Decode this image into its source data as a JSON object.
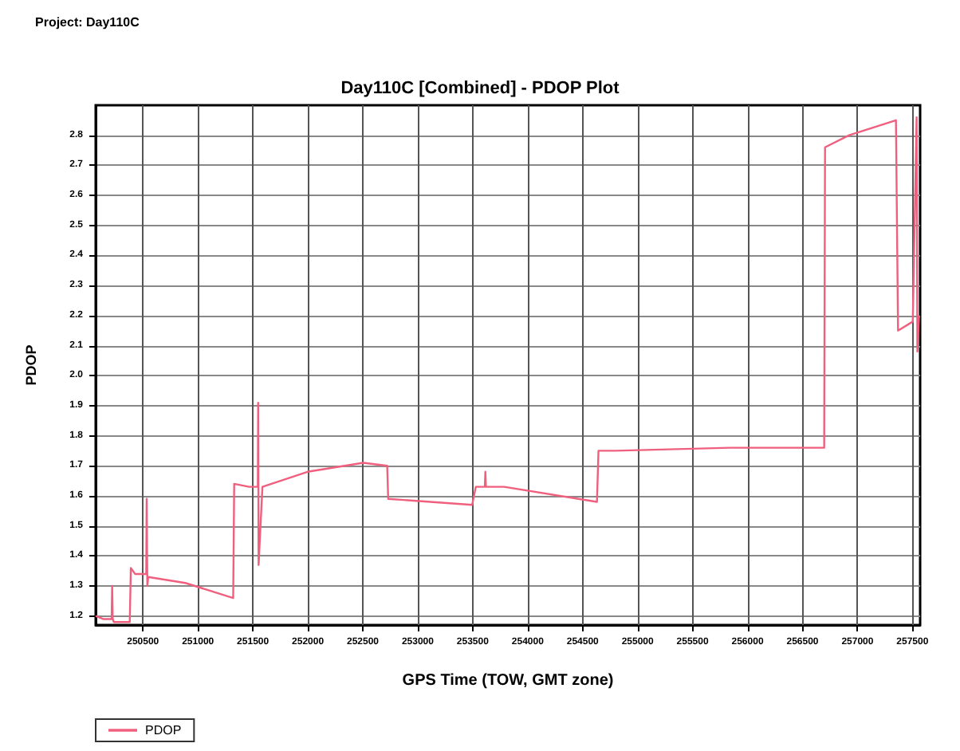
{
  "chart_data": {
    "type": "line",
    "title": "Day110C [Combined] - PDOP Plot",
    "xlabel": "GPS Time (TOW, GMT zone)",
    "ylabel": "PDOP",
    "annotations": [
      "Project: Day110C"
    ],
    "series": [
      {
        "name": "PDOP",
        "color": "#f0607e",
        "x": [
          250070,
          250138,
          250215,
          250220,
          250225,
          250235,
          250380,
          250390,
          250394,
          250428,
          250530,
          250534,
          250540,
          250548,
          250886,
          251321,
          251330,
          251466,
          251545,
          251548,
          251552,
          251587,
          251997,
          252504,
          252722,
          252731,
          253495,
          253528,
          253610,
          253615,
          253620,
          253785,
          254630,
          254644,
          254799,
          255837,
          256697,
          256705,
          256924,
          257350,
          257369,
          257503,
          257538,
          257545,
          257560
        ],
        "values": [
          1.2,
          1.19,
          1.19,
          1.3,
          1.19,
          1.18,
          1.18,
          1.36,
          1.36,
          1.34,
          1.34,
          1.59,
          1.3,
          1.33,
          1.31,
          1.26,
          1.64,
          1.63,
          1.63,
          1.91,
          1.37,
          1.63,
          1.68,
          1.71,
          1.7,
          1.59,
          1.57,
          1.63,
          1.63,
          1.68,
          1.63,
          1.63,
          1.58,
          1.75,
          1.75,
          1.76,
          1.76,
          2.76,
          2.8,
          2.85,
          2.15,
          2.18,
          2.86,
          2.08,
          2.2
        ]
      }
    ],
    "xlim": [
      250070,
      257570
    ],
    "ylim": [
      1.17,
      2.9
    ],
    "xticks": [
      250500,
      251000,
      251500,
      252000,
      252500,
      253000,
      253500,
      254000,
      254500,
      255000,
      255500,
      256000,
      256500,
      257000,
      257500
    ],
    "yticks": [
      1.2,
      1.3,
      1.4,
      1.5,
      1.6,
      1.7,
      1.8,
      1.9,
      {
        "value": 2.0,
        "label": "2.0"
      },
      2.1,
      2.2,
      2.3,
      2.4,
      2.5,
      2.6,
      2.7,
      2.8
    ],
    "grid": true,
    "legend": "bottom",
    "marker": "none",
    "line_style": "solid"
  }
}
